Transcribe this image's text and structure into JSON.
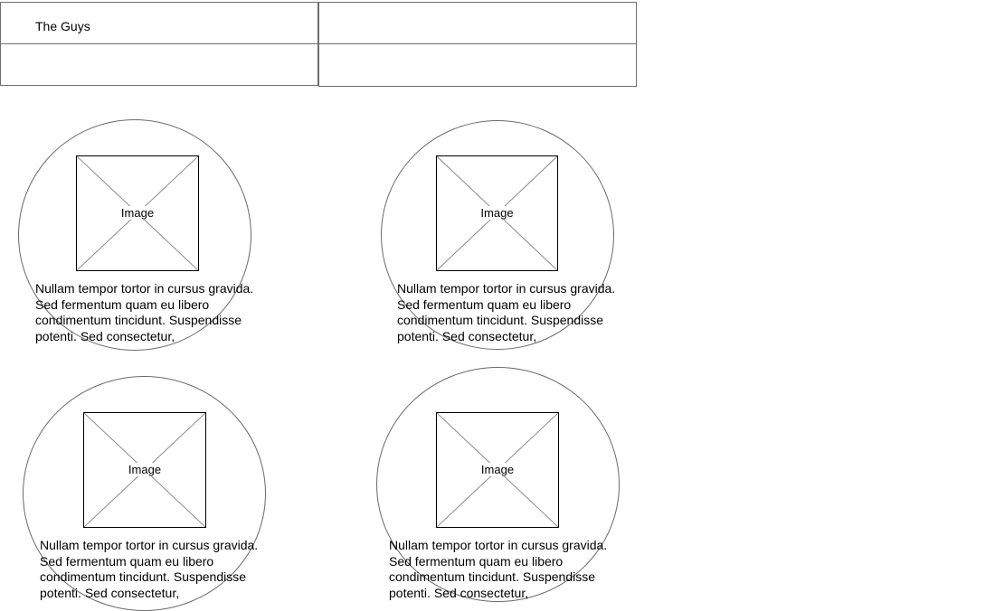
{
  "header": {
    "title": "The Guys"
  },
  "cards": [
    {
      "image_label": "Image",
      "text": "Nullam tempor tortor in cursus gravida. Sed fermentum quam eu libero condimentum tincidunt. Suspendisse potenti. Sed consectetur,"
    },
    {
      "image_label": "Image",
      "text": "Nullam tempor tortor in cursus gravida. Sed fermentum quam eu libero condimentum tincidunt. Suspendisse potenti. Sed consectetur,"
    },
    {
      "image_label": "Image",
      "text": "Nullam tempor tortor in cursus gravida. Sed fermentum quam eu libero condimentum tincidunt. Suspendisse potenti. Sed consectetur,"
    },
    {
      "image_label": "Image",
      "text": "Nullam tempor tortor in cursus gravida. Sed fermentum quam eu libero condimentum tincidunt. Suspendisse potenti. Sed consectetur,"
    }
  ]
}
